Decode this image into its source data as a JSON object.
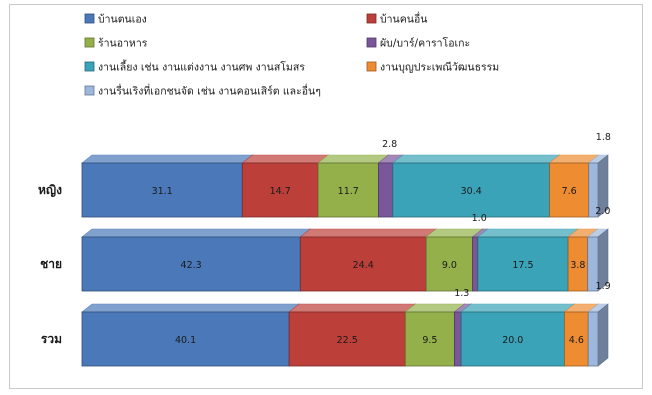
{
  "chart_data": {
    "type": "bar",
    "orientation": "horizontal",
    "stacked": "percent",
    "style": "3d",
    "legend_position": "top",
    "grid": false,
    "categories": [
      "หญิง",
      "ชาย",
      "รวม"
    ],
    "series": [
      {
        "name": "บ้านตนเอง",
        "color": "#4a78b8",
        "values": [
          31.1,
          42.3,
          40.1
        ]
      },
      {
        "name": "บ้านคนอื่น",
        "color": "#bd3f3a",
        "values": [
          14.7,
          24.4,
          22.5
        ]
      },
      {
        "name": "ร้านอาหาร",
        "color": "#93b04a",
        "values": [
          11.7,
          9.0,
          9.5
        ]
      },
      {
        "name": "ผับ/บาร์/คาราโอเกะ",
        "color": "#7a569a",
        "values": [
          2.8,
          1.0,
          1.3
        ]
      },
      {
        "name": "งานเลี้ยง เช่น งานแต่งงาน งานศพ งานสโมสร",
        "color": "#3aa3b8",
        "values": [
          30.4,
          17.5,
          20.0
        ]
      },
      {
        "name": "งานบุญประเพณีวัฒนธรรม",
        "color": "#ee8c32",
        "values": [
          7.6,
          3.8,
          4.6
        ]
      },
      {
        "name": "งานรื่นเริงที่เอกชนจัด เช่น งานคอนเสิร์ต และอื่นๆ",
        "color": "#9db7dd",
        "values": [
          1.8,
          2.0,
          1.9
        ]
      }
    ],
    "value_labels": [
      [
        "31.1",
        "14.7",
        "11.7",
        "2.8",
        "30.4",
        "7.6",
        "1.8"
      ],
      [
        "42.3",
        "24.4",
        "9.0",
        "1.0",
        "17.5",
        "3.8",
        "2.0"
      ],
      [
        "40.1",
        "22.5",
        "9.5",
        "1.3",
        "20.0",
        "4.6",
        "1.9"
      ]
    ]
  }
}
